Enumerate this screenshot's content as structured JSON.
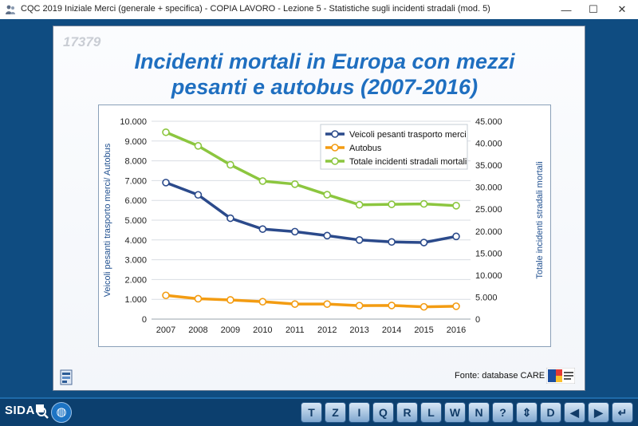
{
  "window": {
    "title": "CQC 2019 Iniziale Merci (generale + specifica) - COPIA LAVORO - Lezione 5 - Statistiche sugli incidenti stradali (mod. 5)",
    "minimize": "—",
    "maximize": "☐",
    "close": "✕"
  },
  "slide": {
    "id": "17379",
    "title_line1": "Incidenti mortali in Europa con mezzi",
    "title_line2": "pesanti e autobus (2007-2016)",
    "source": "Fonte: database CARE"
  },
  "bottombar": {
    "logo": "SIDA",
    "buttons": [
      "T",
      "Z",
      "I",
      "Q",
      "R",
      "L",
      "W",
      "N",
      "?",
      "⇕",
      "D",
      "◀",
      "▶",
      "↵"
    ]
  },
  "colors": {
    "heavy": "#2b4a8b",
    "bus": "#f39c12",
    "total": "#8cc63f",
    "title": "#1f6fc0"
  },
  "chart_data": {
    "type": "line",
    "x": [
      "2007",
      "2008",
      "2009",
      "2010",
      "2011",
      "2012",
      "2013",
      "2014",
      "2015",
      "2016"
    ],
    "ylabel_left": "Veicoli pesanti trasporto merci/ Autobus",
    "ylabel_right": "Totale incidenti stradali mortali",
    "ylim_left": [
      0,
      10000
    ],
    "ylim_right": [
      0,
      45000
    ],
    "yticks_left": [
      "0",
      "1.000",
      "2.000",
      "3.000",
      "4.000",
      "5.000",
      "6.000",
      "7.000",
      "8.000",
      "9.000",
      "10.000"
    ],
    "yticks_right": [
      "0",
      "5.000",
      "10.000",
      "15.000",
      "20.000",
      "25.000",
      "30.000",
      "35.000",
      "40.000",
      "45.000"
    ],
    "legend_position": "top-right",
    "grid": true,
    "series": [
      {
        "name": "Veicoli pesanti trasporto merci",
        "axis": "left",
        "color": "#2b4a8b",
        "values": [
          6900,
          6280,
          5100,
          4550,
          4420,
          4220,
          4000,
          3900,
          3870,
          4180
        ]
      },
      {
        "name": "Autobus",
        "axis": "left",
        "color": "#f39c12",
        "values": [
          1200,
          1030,
          970,
          880,
          760,
          760,
          680,
          690,
          620,
          650
        ]
      },
      {
        "name": "Totale incidenti stradali mortali",
        "axis": "right",
        "color": "#8cc63f",
        "values": [
          42500,
          39400,
          35100,
          31400,
          30700,
          28300,
          26000,
          26100,
          26200,
          25800
        ]
      }
    ]
  }
}
